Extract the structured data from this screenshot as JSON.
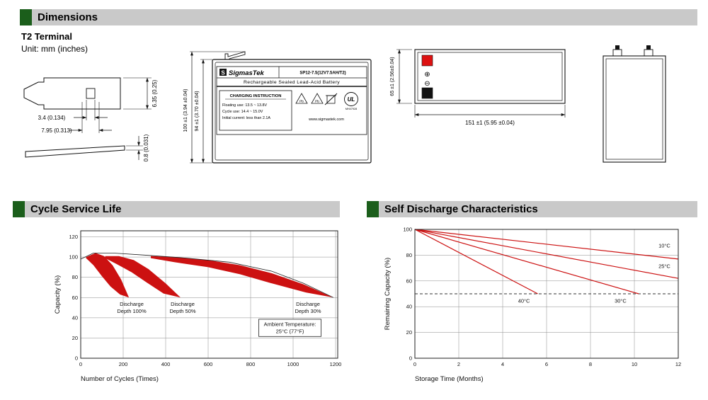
{
  "headers": {
    "dimensions": "Dimensions",
    "cycle": "Cycle Service Life",
    "self_discharge": "Self Discharge Characteristics"
  },
  "colors": {
    "accent_green": "#1b5e1b",
    "header_gray": "#c9c9c9",
    "band_red": "#cc1111",
    "terminal_red": "#dd1111",
    "terminal_black": "#111111"
  },
  "dimensions_section": {
    "terminal_type": "T2 Terminal",
    "unit": "Unit: mm (inches)",
    "terminal_drawing": {
      "hole_width": "3.4 (0.134)",
      "tab_width": "7.95 (0.313)",
      "tab_height": "6.35 (0.25)",
      "thickness": "0.8 (0.031)"
    },
    "front_view": {
      "height_outer": "100 ±1 (3.94 ±0.04)",
      "height_inner": "94 ±1 (3.70 ±0.04)",
      "label": {
        "brand": "SigmasTek",
        "logo_letter": "S",
        "model": "SP12-7.5(12V7.5AH/T2)",
        "subtitle": "Rechargeable Sealed Lead-Acid Battery",
        "charging_title": "CHARGING INSTRUCTION",
        "charging_line1": "Floating use: 13.5 ~ 13.8V",
        "charging_line2": "Cycle use: 14.4 ~ 15.0V",
        "charging_line3": "Initial current: less than 2.1A",
        "pb": "Pb",
        "ul": "UL",
        "ul_number": "MH47928",
        "website": "www.sigmastek.com"
      }
    },
    "top_view": {
      "depth": "65 ±1 (2.56±0.04)",
      "length": "151 ±1 (5.95 ±0.04)",
      "plus_symbol": "⊕",
      "minus_symbol": "⊖"
    }
  },
  "chart_data": [
    {
      "type": "area",
      "title": "Cycle Service Life",
      "xlabel": "Number of Cycles (Times)",
      "ylabel": "Capacity (%)",
      "xlim": [
        0,
        1210
      ],
      "ylim": [
        0,
        126
      ],
      "xticks": [
        0,
        200,
        400,
        600,
        800,
        1000,
        1200
      ],
      "yticks": [
        0,
        20,
        40,
        60,
        80,
        100,
        120
      ],
      "grid": true,
      "band_color": "#cc1111",
      "envelope": {
        "x": [
          0,
          60,
          150,
          300,
          500,
          700,
          900,
          1050,
          1190
        ],
        "y": [
          98,
          104,
          104,
          102,
          99,
          95,
          86,
          74,
          60
        ]
      },
      "bands": [
        {
          "name": "Discharge Depth 100%",
          "top_x": [
            25,
            70,
            110,
            150,
            190,
            227
          ],
          "top_y": [
            100,
            104,
            101,
            92,
            78,
            60
          ],
          "bot_x": [
            25,
            60,
            100,
            140,
            185,
            227
          ],
          "bot_y": [
            99,
            92,
            81,
            71,
            63,
            60
          ]
        },
        {
          "name": "Discharge Depth 50%",
          "top_x": [
            115,
            180,
            250,
            320,
            400,
            470
          ],
          "top_y": [
            101,
            101,
            97,
            88,
            74,
            60
          ],
          "bot_x": [
            115,
            170,
            240,
            310,
            390,
            470
          ],
          "bot_y": [
            99,
            93,
            85,
            75,
            64,
            60
          ]
        },
        {
          "name": "Discharge Depth 30%",
          "top_x": [
            330,
            450,
            600,
            750,
            900,
            1050,
            1190
          ],
          "top_y": [
            101,
            100,
            97,
            92,
            84,
            73,
            60
          ],
          "bot_x": [
            330,
            440,
            600,
            750,
            900,
            1060,
            1190
          ],
          "bot_y": [
            99,
            95,
            90,
            83,
            74,
            65,
            60
          ]
        }
      ],
      "annotations": [
        {
          "text": "Discharge\nDepth 100%",
          "x": 240,
          "y": 50,
          "boxed": false
        },
        {
          "text": "Discharge\nDepth 50%",
          "x": 480,
          "y": 50,
          "boxed": false
        },
        {
          "text": "Discharge\nDepth 30%",
          "x": 1070,
          "y": 50,
          "boxed": false
        },
        {
          "text": "Ambient Temperature:\n25°C (77°F)",
          "x": 985,
          "y": 30,
          "boxed": true
        }
      ]
    },
    {
      "type": "line",
      "title": "Self Discharge Characteristics",
      "xlabel": "Storage Time (Months)",
      "ylabel": "Remaining Capacity (%)",
      "xlim": [
        0,
        12
      ],
      "ylim": [
        0,
        100
      ],
      "xticks": [
        0,
        2,
        4,
        6,
        8,
        10,
        12
      ],
      "yticks": [
        0,
        20,
        40,
        60,
        80,
        100
      ],
      "grid": true,
      "dashed_y": 50,
      "line_color": "#cc1111",
      "series": [
        {
          "name": "10°C",
          "x": [
            0,
            12
          ],
          "y": [
            100,
            77
          ],
          "label_x": 11.1,
          "label_y": 86
        },
        {
          "name": "25°C",
          "x": [
            0,
            12
          ],
          "y": [
            100,
            62
          ],
          "label_x": 11.1,
          "label_y": 70
        },
        {
          "name": "30°C",
          "x": [
            0,
            10.2
          ],
          "y": [
            100,
            50
          ],
          "label_x": 9.1,
          "label_y": 43
        },
        {
          "name": "40°C",
          "x": [
            0,
            5.6
          ],
          "y": [
            100,
            50
          ],
          "label_x": 4.7,
          "label_y": 43
        }
      ]
    }
  ]
}
